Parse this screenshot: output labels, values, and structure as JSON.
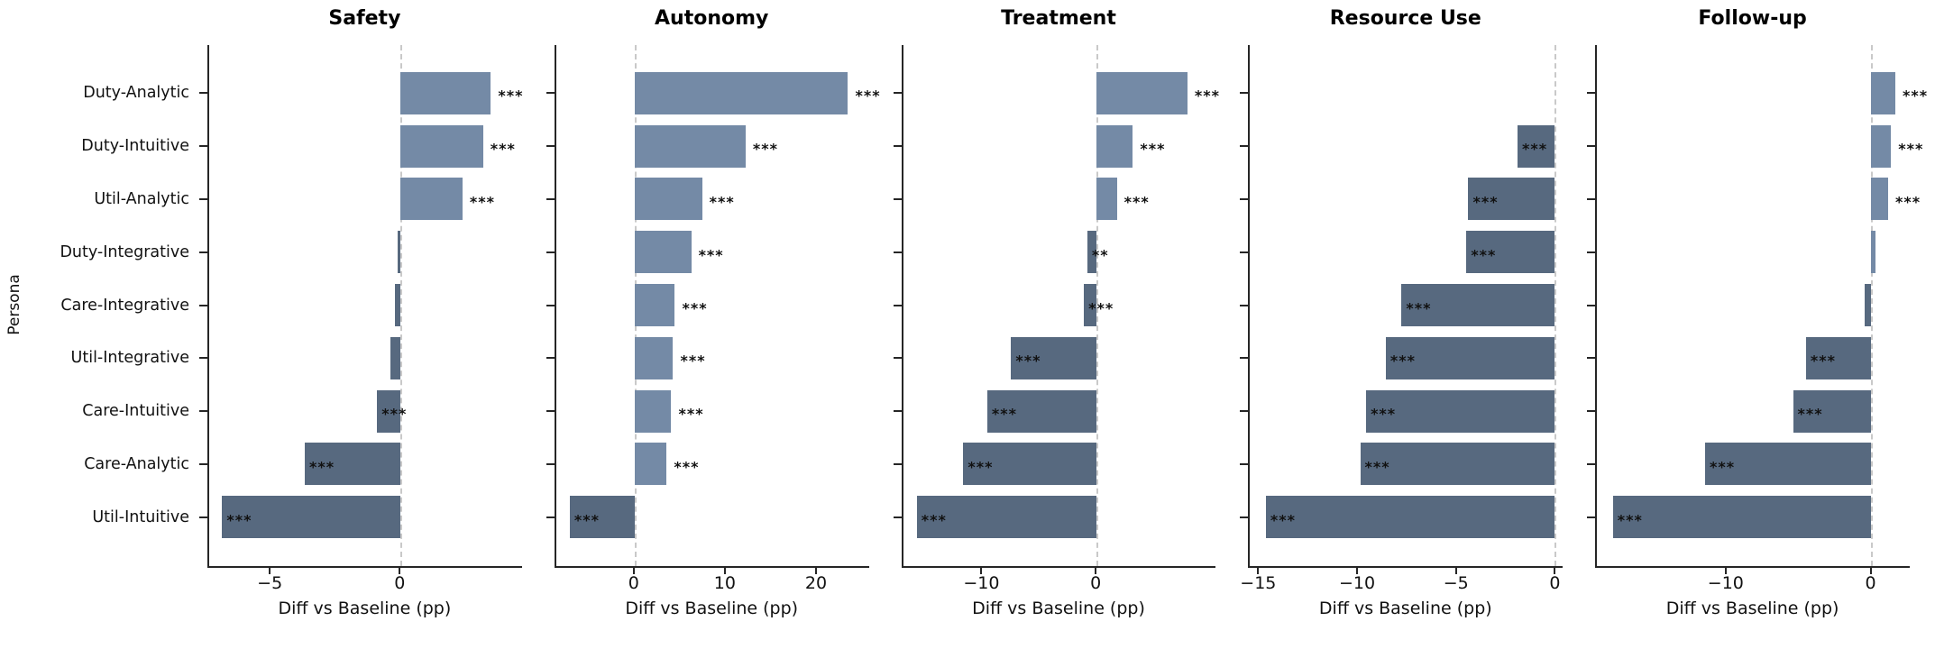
{
  "chart_data": {
    "type": "bar",
    "orientation": "horizontal",
    "ylabel": "Persona",
    "xlabel": "Diff vs Baseline (pp)",
    "categories": [
      "Duty-Analytic",
      "Duty-Intuitive",
      "Util-Analytic",
      "Duty-Integrative",
      "Care-Integrative",
      "Util-Integrative",
      "Care-Intuitive",
      "Care-Analytic",
      "Util-Intuitive"
    ],
    "colors": {
      "positive_bar": "#748AA6",
      "negative_bar": "#57697F",
      "zero_line": "#C9C9C9",
      "axis": "#262626",
      "text": "#111111"
    },
    "legend": "none",
    "grid": "off",
    "panels": [
      {
        "title": "Safety",
        "xlim": [
          -7.4,
          4.7
        ],
        "xticks": [
          -5,
          0
        ],
        "values": [
          3.5,
          3.2,
          2.4,
          -0.1,
          -0.2,
          -0.4,
          -0.9,
          -3.7,
          -6.9
        ],
        "significance": [
          "***",
          "***",
          "***",
          "",
          "",
          "",
          "***",
          "***",
          "***"
        ]
      },
      {
        "title": "Autonomy",
        "xlim": [
          -8.7,
          25.8
        ],
        "xticks": [
          0,
          10,
          20
        ],
        "values": [
          23.5,
          12.2,
          7.4,
          6.2,
          4.4,
          4.2,
          4.0,
          3.5,
          -7.2
        ],
        "significance": [
          "***",
          "***",
          "***",
          "***",
          "***",
          "***",
          "***",
          "***",
          "***"
        ]
      },
      {
        "title": "Treatment",
        "xlim": [
          -17.0,
          10.5
        ],
        "xticks": [
          -10,
          0
        ],
        "values": [
          8.0,
          3.2,
          1.8,
          -0.8,
          -1.1,
          -7.5,
          -9.6,
          -11.7,
          -15.8
        ],
        "significance": [
          "***",
          "***",
          "***",
          "**",
          "***",
          "***",
          "***",
          "***",
          "***"
        ]
      },
      {
        "title": "Resource Use",
        "xlim": [
          -15.5,
          0.4
        ],
        "xticks": [
          -15,
          -10,
          -5,
          0
        ],
        "values": [
          0.0,
          -1.9,
          -4.4,
          -4.5,
          -7.8,
          -8.6,
          -9.6,
          -9.9,
          -14.7
        ],
        "significance": [
          "",
          "***",
          "***",
          "***",
          "***",
          "***",
          "***",
          "***",
          "***"
        ]
      },
      {
        "title": "Follow-up",
        "xlim": [
          -19.0,
          2.7
        ],
        "xticks": [
          -10,
          0
        ],
        "values": [
          1.7,
          1.4,
          1.2,
          0.3,
          -0.4,
          -4.5,
          -5.4,
          -11.5,
          -17.9
        ],
        "significance": [
          "***",
          "***",
          "***",
          "",
          "",
          "***",
          "***",
          "***",
          "***"
        ]
      }
    ]
  }
}
